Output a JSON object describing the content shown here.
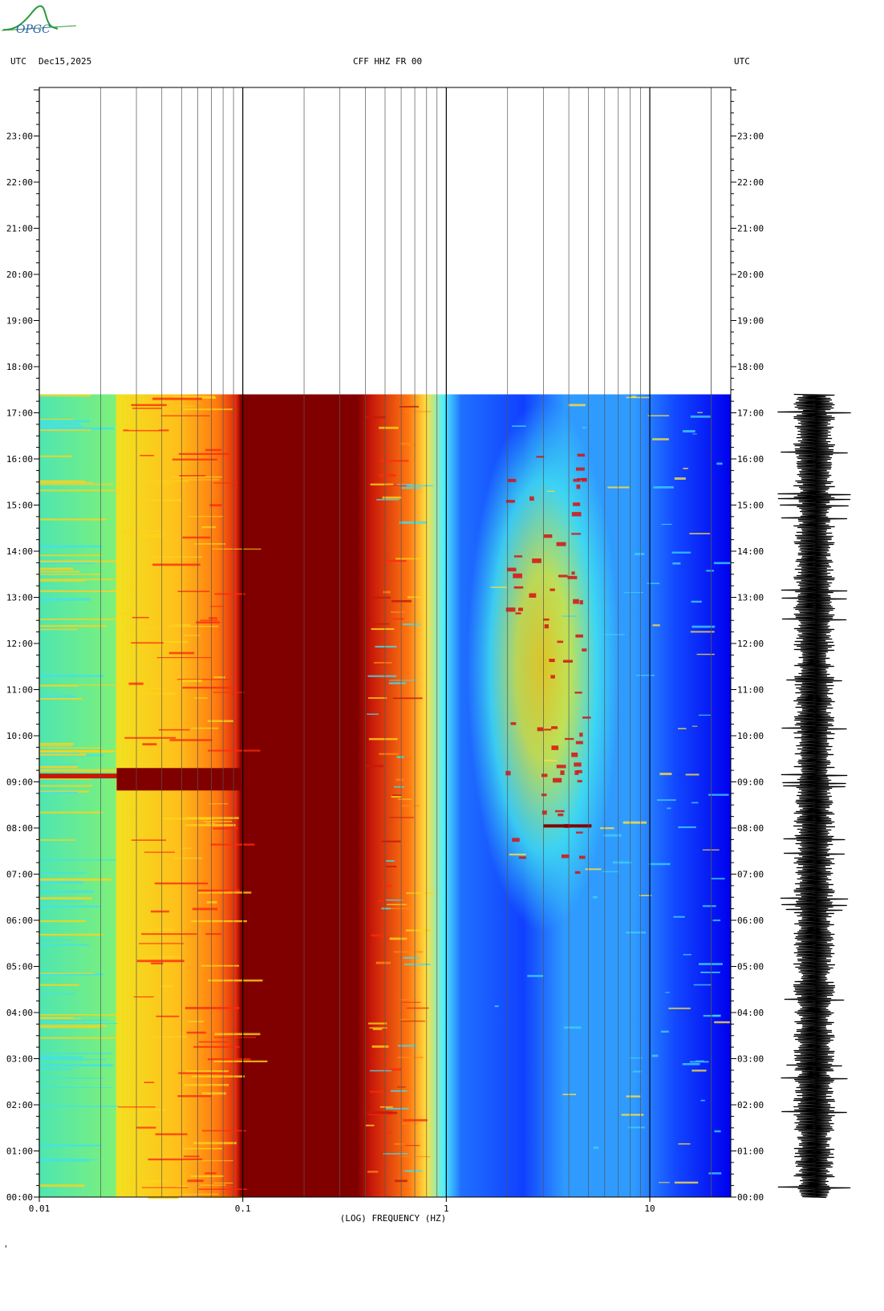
{
  "header": {
    "left_tz": "UTC",
    "date": "Dec15,2025",
    "station": "CFF HHZ FR 00",
    "right_tz": "UTC"
  },
  "logo": {
    "text": "OPGC",
    "accent": "#2b9a3c",
    "text_color": "#2c5db3"
  },
  "footer_mark": "'",
  "chart_data": {
    "type": "heatmap",
    "title": "CFF HHZ FR 00",
    "xlabel": "(LOG) FREQUENCY (HZ)",
    "xscale": "log",
    "xlim": [
      0.01,
      25
    ],
    "x_ticks": [
      {
        "value": 0.01,
        "label": "0.01"
      },
      {
        "value": 0.1,
        "label": "0.1"
      },
      {
        "value": 1,
        "label": "1"
      },
      {
        "value": 10,
        "label": "10"
      }
    ],
    "ylabel": "UTC",
    "ylim_hours": [
      0,
      24
    ],
    "y_ticks": [
      "00:00",
      "01:00",
      "02:00",
      "03:00",
      "04:00",
      "05:00",
      "06:00",
      "07:00",
      "08:00",
      "09:00",
      "10:00",
      "11:00",
      "12:00",
      "13:00",
      "14:00",
      "15:00",
      "16:00",
      "17:00",
      "18:00",
      "19:00",
      "20:00",
      "21:00",
      "22:00",
      "23:00"
    ],
    "data_end_hour": 17.4,
    "colorscale": [
      "#0000ff",
      "#00ffff",
      "#ffff00",
      "#ff0000",
      "#800000"
    ],
    "power_bands": [
      {
        "f_min": 0.01,
        "f_max": 0.024,
        "level": "green-cyan"
      },
      {
        "f_min": 0.024,
        "f_max": 0.072,
        "level": "yellow-orange"
      },
      {
        "f_min": 0.072,
        "f_max": 0.1,
        "level": "orange-red"
      },
      {
        "f_min": 0.1,
        "f_max": 0.45,
        "level": "dark-red"
      },
      {
        "f_min": 0.45,
        "f_max": 0.7,
        "level": "red-yellow"
      },
      {
        "f_min": 0.7,
        "f_max": 1.0,
        "level": "cyan"
      },
      {
        "f_min": 1.0,
        "f_max": 25,
        "level": "blue"
      }
    ],
    "events": [
      {
        "hour": 9.1,
        "f_min": 0.024,
        "f_max": 0.1,
        "level": "dark-red"
      },
      {
        "hour_start": 6.5,
        "hour_end": 16.5,
        "f_min": 2,
        "f_max": 5,
        "level": "yellow-red"
      }
    ],
    "right_panel": "seismogram trace"
  }
}
